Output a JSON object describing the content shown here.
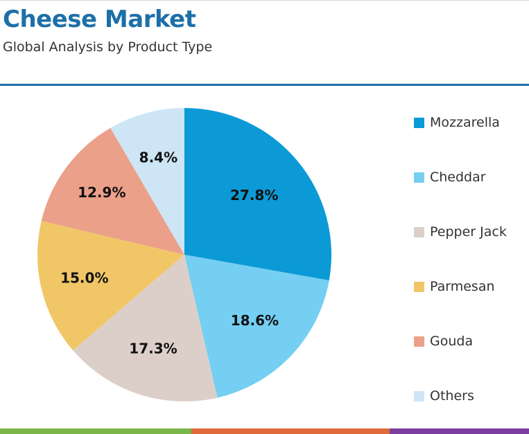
{
  "header": {
    "title": "Cheese Market",
    "subtitle": "Global Analysis by Product Type"
  },
  "colors": {
    "title": "#1d6fa8",
    "rule": "#1d6fa8",
    "bottom_bar": [
      "#7ab648",
      "#e06a3c",
      "#7b3fa0"
    ]
  },
  "chart_data": {
    "type": "pie",
    "title": "Cheese Market",
    "subtitle": "Global Analysis by Product Type",
    "legend_position": "right",
    "slices": [
      {
        "name": "Mozzarella",
        "value": 27.8,
        "label": "27.8%",
        "color": "#0b9ad6"
      },
      {
        "name": "Cheddar",
        "value": 18.6,
        "label": "18.6%",
        "color": "#74cff2"
      },
      {
        "name": "Pepper Jack",
        "value": 17.3,
        "label": "17.3%",
        "color": "#dccfca"
      },
      {
        "name": "Parmesan",
        "value": 15.0,
        "label": "15.0%",
        "color": "#f1c667"
      },
      {
        "name": "Gouda",
        "value": 12.9,
        "label": "12.9%",
        "color": "#eba08a"
      },
      {
        "name": "Others",
        "value": 8.4,
        "label": "8.4%",
        "color": "#cde5f4"
      }
    ]
  }
}
